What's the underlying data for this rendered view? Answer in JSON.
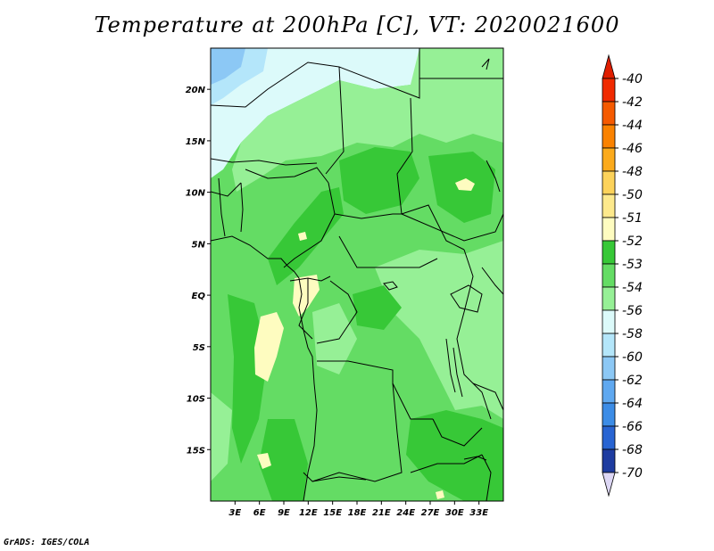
{
  "title": "Temperature at 200hPa [C], VT: 2020021600",
  "footer": "GrADS: IGES/COLA",
  "map": {
    "lon_range": [
      0,
      36
    ],
    "lat_range": [
      -20,
      24
    ],
    "lat_ticks": [
      {
        "lat": 20,
        "label": "20N"
      },
      {
        "lat": 15,
        "label": "15N"
      },
      {
        "lat": 10,
        "label": "10N"
      },
      {
        "lat": 5,
        "label": "5N"
      },
      {
        "lat": 0,
        "label": "EQ"
      },
      {
        "lat": -5,
        "label": "5S"
      },
      {
        "lat": -10,
        "label": "10S"
      },
      {
        "lat": -15,
        "label": "15S"
      }
    ],
    "lon_ticks": [
      {
        "lon": 3,
        "label": "3E"
      },
      {
        "lon": 6,
        "label": "6E"
      },
      {
        "lon": 9,
        "label": "9E"
      },
      {
        "lon": 12,
        "label": "12E"
      },
      {
        "lon": 15,
        "label": "15E"
      },
      {
        "lon": 18,
        "label": "18E"
      },
      {
        "lon": 21,
        "label": "21E"
      },
      {
        "lon": 24,
        "label": "24E"
      },
      {
        "lon": 27,
        "label": "27E"
      },
      {
        "lon": 30,
        "label": "30E"
      },
      {
        "lon": 33,
        "label": "33E"
      }
    ]
  },
  "colorbar": {
    "levels": [
      {
        "label": "-40",
        "color": "#f02a00"
      },
      {
        "label": "-42",
        "color": "#f55a00"
      },
      {
        "label": "-44",
        "color": "#fa8200"
      },
      {
        "label": "-46",
        "color": "#fbaa1c"
      },
      {
        "label": "-48",
        "color": "#fcd25a"
      },
      {
        "label": "-50",
        "color": "#fde98c"
      },
      {
        "label": "-51",
        "color": "#fefcc0"
      },
      {
        "label": "-52",
        "color": "#37c837"
      },
      {
        "label": "-53",
        "color": "#64dc64"
      },
      {
        "label": "-54",
        "color": "#96f096"
      },
      {
        "label": "-56",
        "color": "#dcfafa"
      },
      {
        "label": "-58",
        "color": "#b4e6fa"
      },
      {
        "label": "-60",
        "color": "#8cc8f5"
      },
      {
        "label": "-62",
        "color": "#5fa8f0"
      },
      {
        "label": "-64",
        "color": "#3c8ce6"
      },
      {
        "label": "-66",
        "color": "#2864d2"
      },
      {
        "label": "-68",
        "color": "#1e3ca0"
      },
      {
        "label": "-70",
        "color": "#0a1a6e"
      }
    ],
    "top_color": "#e01e00",
    "bottom_color": "#ddd7f5"
  },
  "field_colors": {
    "pale_yellow": "#fefcc0",
    "green_dark": "#37c837",
    "green_mid": "#64dc64",
    "green_light": "#96f096",
    "very_light_green": "#c8fac8",
    "cyan_pale": "#dcfafa",
    "blue_light": "#b4e6fa",
    "blue_mid": "#8cc8f5"
  }
}
